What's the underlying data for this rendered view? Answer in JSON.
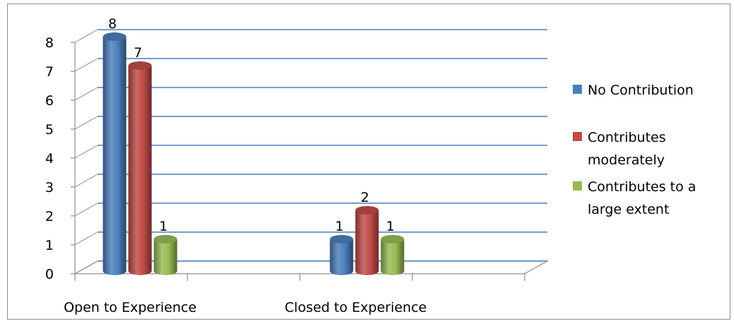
{
  "chart_data": {
    "type": "bar",
    "three_d": true,
    "categories": [
      "Open to Experience",
      "Closed to Experience"
    ],
    "series": [
      {
        "name": "No Contribution",
        "values": [
          8,
          1
        ],
        "color": "#4a7ebb"
      },
      {
        "name": "Contributes moderately",
        "values": [
          7,
          2
        ],
        "color": "#be4b48"
      },
      {
        "name": "Contributes to a large extent",
        "values": [
          1,
          1
        ],
        "color": "#98b954"
      }
    ],
    "legend_lines": [
      [
        "No Contribution"
      ],
      [
        "Contributes",
        "moderately"
      ],
      [
        "Contributes to a",
        "large extent"
      ]
    ],
    "title": "",
    "xlabel": "",
    "ylabel": "",
    "ylim": [
      0,
      8
    ],
    "yticks": [
      0,
      1,
      2,
      3,
      4,
      5,
      6,
      7,
      8
    ],
    "grid": true,
    "gridline_color": "#4a7ebb",
    "data_labels": true,
    "legend_position": "right"
  }
}
